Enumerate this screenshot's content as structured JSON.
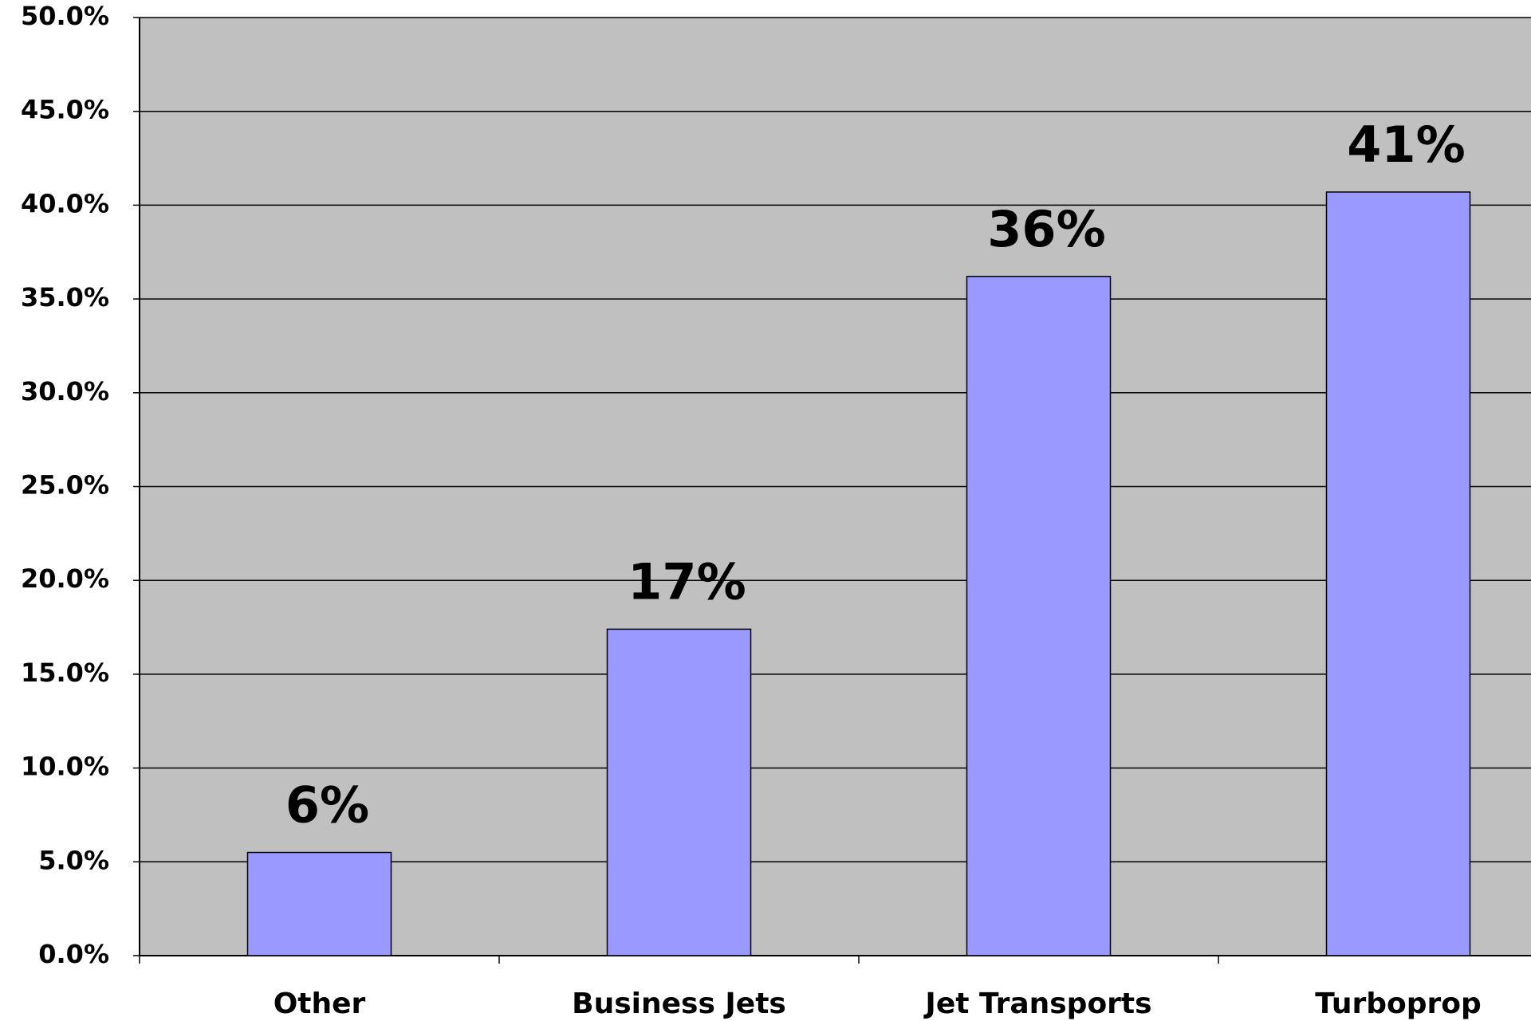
{
  "chart_data": {
    "type": "bar",
    "categories": [
      "Other",
      "Business Jets",
      "Jet Transports",
      "Turboprop"
    ],
    "values": [
      5.5,
      17.4,
      36.2,
      40.7
    ],
    "value_labels": [
      "6%",
      "17%",
      "36%",
      "41%"
    ],
    "color": "#9999ff",
    "ylim": [
      0,
      50
    ],
    "yticks": [
      {
        "value": 0,
        "label": "0.0%"
      },
      {
        "value": 5,
        "label": "5.0%"
      },
      {
        "value": 10,
        "label": "10.0%"
      },
      {
        "value": 15,
        "label": "15.0%"
      },
      {
        "value": 20,
        "label": "20.0%"
      },
      {
        "value": 25,
        "label": "25.0%"
      },
      {
        "value": 30,
        "label": "30.0%"
      },
      {
        "value": 35,
        "label": "35.0%"
      },
      {
        "value": 40,
        "label": "40.0%"
      },
      {
        "value": 45,
        "label": "45.0%"
      },
      {
        "value": 50,
        "label": "50.0%"
      }
    ],
    "grid": true
  }
}
